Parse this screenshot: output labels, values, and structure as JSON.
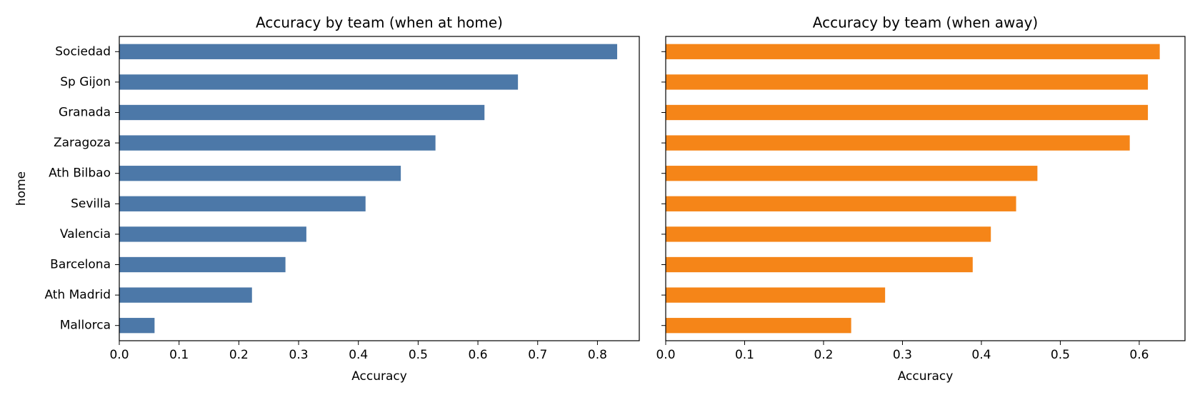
{
  "chart_data": [
    {
      "type": "barh",
      "title": "Accuracy by team (when at home)",
      "xlabel": "Accuracy",
      "ylabel": "home",
      "categories": [
        "Sociedad",
        "Sp Gijon",
        "Granada",
        "Zaragoza",
        "Ath Bilbao",
        "Sevilla",
        "Valencia",
        "Barcelona",
        "Ath Madrid",
        "Mallorca"
      ],
      "values": [
        0.833,
        0.667,
        0.611,
        0.529,
        0.471,
        0.412,
        0.313,
        0.278,
        0.222,
        0.059
      ],
      "color": "#4c78a8",
      "xlim": [
        0,
        0.87
      ],
      "xticks": [
        {
          "value": 0,
          "label": "0.0"
        },
        0.1,
        0.2,
        0.3,
        0.4,
        0.5,
        0.6,
        0.7,
        0.8
      ]
    },
    {
      "type": "barh",
      "title": "Accuracy by team (when away)",
      "xlabel": "Accuracy",
      "values": [
        0.626,
        0.611,
        0.611,
        0.588,
        0.471,
        0.444,
        0.412,
        0.389,
        0.278,
        0.235
      ],
      "color": "#f58518",
      "xlim": [
        0,
        0.658
      ],
      "xticks": [
        {
          "value": 0,
          "label": "0.0"
        },
        0.1,
        0.2,
        0.3,
        0.4,
        0.5,
        0.6
      ]
    }
  ]
}
